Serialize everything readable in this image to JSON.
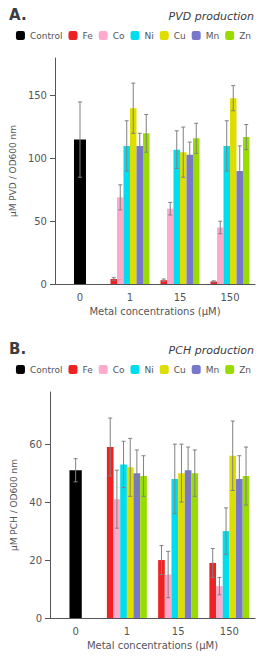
{
  "chart_data": [
    {
      "type": "bar",
      "title": "PVD production",
      "annotations": [
        "A."
      ],
      "xlabel": "Metal concentrations (μM)",
      "ylabel": "μM PVD / OD600 nm",
      "categories": [
        "0",
        "1",
        "15",
        "150"
      ],
      "series": [
        {
          "name": "Control",
          "color": "#000000",
          "values": [
            115,
            null,
            null,
            null
          ],
          "errors": [
            30,
            null,
            null,
            null
          ]
        },
        {
          "name": "Fe",
          "color": "#ee2222",
          "values": [
            null,
            4,
            3,
            2
          ],
          "errors": [
            null,
            1,
            1,
            0.5
          ]
        },
        {
          "name": "Co",
          "color": "#ffaacc",
          "values": [
            null,
            69,
            60,
            45
          ],
          "errors": [
            null,
            10,
            5,
            5
          ]
        },
        {
          "name": "Ni",
          "color": "#00ddee",
          "values": [
            null,
            110,
            107,
            110
          ],
          "errors": [
            null,
            20,
            15,
            20
          ]
        },
        {
          "name": "Cu",
          "color": "#dddd00",
          "values": [
            null,
            140,
            105,
            148
          ],
          "errors": [
            null,
            20,
            20,
            10
          ]
        },
        {
          "name": "Mn",
          "color": "#7777cc",
          "values": [
            null,
            110,
            103,
            90
          ],
          "errors": [
            null,
            10,
            10,
            20
          ]
        },
        {
          "name": "Zn",
          "color": "#99dd00",
          "values": [
            null,
            120,
            116,
            117
          ],
          "errors": [
            null,
            15,
            12,
            10
          ]
        }
      ],
      "ylim": [
        0,
        180
      ],
      "yticks": [
        0,
        50,
        100,
        150
      ],
      "grid": false,
      "legend": "top"
    },
    {
      "type": "bar",
      "title": "PCH production",
      "annotations": [
        "B."
      ],
      "xlabel": "Metal concentrations (μM)",
      "ylabel": "μM PCH / OD600 nm",
      "categories": [
        "0",
        "1",
        "15",
        "150"
      ],
      "series": [
        {
          "name": "Control",
          "color": "#000000",
          "values": [
            51,
            null,
            null,
            null
          ],
          "errors": [
            4,
            null,
            null,
            null
          ]
        },
        {
          "name": "Fe",
          "color": "#ee2222",
          "values": [
            null,
            59,
            20,
            19
          ],
          "errors": [
            null,
            10,
            5,
            5
          ]
        },
        {
          "name": "Co",
          "color": "#ffaacc",
          "values": [
            null,
            41,
            15,
            11
          ],
          "errors": [
            null,
            10,
            8,
            3
          ]
        },
        {
          "name": "Ni",
          "color": "#00ddee",
          "values": [
            null,
            53,
            48,
            30
          ],
          "errors": [
            null,
            8,
            12,
            8
          ]
        },
        {
          "name": "Cu",
          "color": "#dddd00",
          "values": [
            null,
            52,
            50,
            56
          ],
          "errors": [
            null,
            10,
            10,
            12
          ]
        },
        {
          "name": "Mn",
          "color": "#7777cc",
          "values": [
            null,
            50,
            51,
            48
          ],
          "errors": [
            null,
            8,
            8,
            8
          ]
        },
        {
          "name": "Zn",
          "color": "#99dd00",
          "values": [
            null,
            49,
            50,
            49
          ],
          "errors": [
            null,
            7,
            8,
            10
          ]
        }
      ],
      "ylim": [
        0,
        78
      ],
      "yticks": [
        0,
        20,
        40,
        60
      ],
      "grid": false,
      "legend": "top"
    }
  ]
}
